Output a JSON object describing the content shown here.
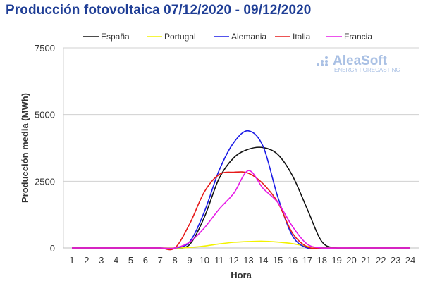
{
  "header": {
    "title": "Producción fotovoltaica 07/12/2020 - 09/12/2020"
  },
  "logo": {
    "name": "AleaSoft",
    "tagline": "ENERGY FORECASTING"
  },
  "chart_data": {
    "type": "line",
    "title": "Producción fotovoltaica 07/12/2020 - 09/12/2020",
    "xlabel": "Hora",
    "ylabel": "Producción media (MWh)",
    "ylim": [
      0,
      7500
    ],
    "yticks": [
      0,
      2500,
      5000,
      7500
    ],
    "xlim": [
      1,
      24
    ],
    "x": [
      1,
      2,
      3,
      4,
      5,
      6,
      7,
      8,
      9,
      10,
      11,
      12,
      13,
      14,
      15,
      16,
      17,
      18,
      19,
      20,
      21,
      22,
      23,
      24
    ],
    "legend_position": "top",
    "grid": true,
    "series": [
      {
        "name": "España",
        "color": "#111111",
        "values": [
          0,
          0,
          0,
          0,
          0,
          0,
          0,
          0,
          130,
          1150,
          2600,
          3380,
          3700,
          3760,
          3500,
          2700,
          1450,
          230,
          0,
          0,
          0,
          0,
          0,
          0
        ]
      },
      {
        "name": "Portugal",
        "color": "#f2f200",
        "values": [
          0,
          0,
          0,
          0,
          0,
          0,
          0,
          0,
          20,
          70,
          150,
          210,
          240,
          250,
          220,
          160,
          60,
          10,
          0,
          0,
          0,
          0,
          0,
          0
        ]
      },
      {
        "name": "Alemania",
        "color": "#1a1ae6",
        "values": [
          0,
          0,
          0,
          0,
          0,
          0,
          0,
          0,
          230,
          1350,
          2900,
          3950,
          4390,
          3800,
          1900,
          450,
          0,
          0,
          0,
          0,
          0,
          0,
          0,
          0
        ]
      },
      {
        "name": "Italia",
        "color": "#e61a1a",
        "values": [
          0,
          0,
          0,
          0,
          0,
          0,
          0,
          0,
          900,
          2100,
          2750,
          2840,
          2800,
          2400,
          1700,
          550,
          40,
          0,
          0,
          0,
          0,
          0,
          0,
          0
        ]
      },
      {
        "name": "Francia",
        "color": "#e61ae6",
        "values": [
          0,
          0,
          0,
          0,
          0,
          0,
          0,
          0,
          220,
          750,
          1450,
          2050,
          2900,
          2230,
          1700,
          800,
          140,
          0,
          0,
          0,
          0,
          0,
          0,
          0
        ]
      }
    ]
  }
}
